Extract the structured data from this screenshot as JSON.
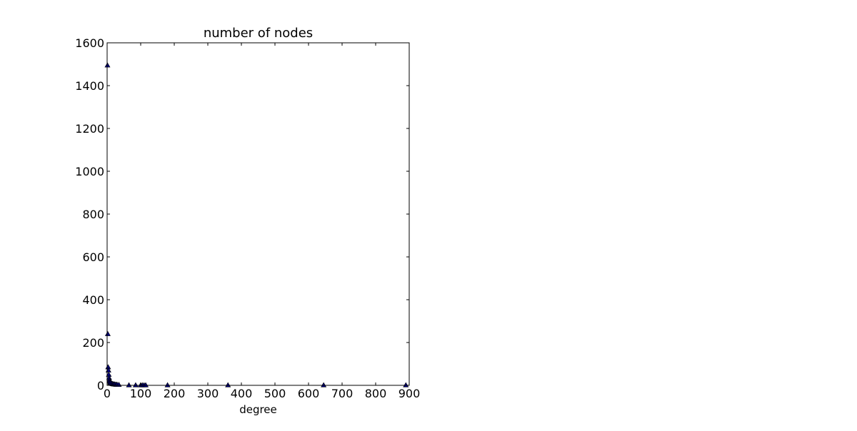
{
  "chart_data": {
    "type": "scatter",
    "title": "number of nodes",
    "xlabel": "degree",
    "ylabel": "",
    "xlim": [
      0,
      900
    ],
    "ylim": [
      0,
      1600
    ],
    "xticks": [
      0,
      100,
      200,
      300,
      400,
      500,
      600,
      700,
      800,
      900
    ],
    "yticks": [
      0,
      200,
      400,
      600,
      800,
      1000,
      1200,
      1400,
      1600
    ],
    "grid": false,
    "marker": "triangle-up",
    "marker_color": "#000080",
    "series": [
      {
        "x": [
          1,
          2,
          3,
          4,
          5,
          6,
          7,
          8,
          9,
          10,
          12,
          14,
          16,
          18,
          20,
          22,
          25,
          28,
          30,
          35,
          65,
          85,
          100,
          105,
          110,
          115,
          180,
          360,
          645,
          890
        ],
        "y": [
          1495,
          240,
          85,
          70,
          50,
          35,
          25,
          20,
          15,
          12,
          10,
          8,
          7,
          6,
          5,
          5,
          4,
          4,
          3,
          3,
          1,
          1,
          1,
          1,
          1,
          1,
          1,
          1,
          1,
          1
        ]
      }
    ]
  }
}
